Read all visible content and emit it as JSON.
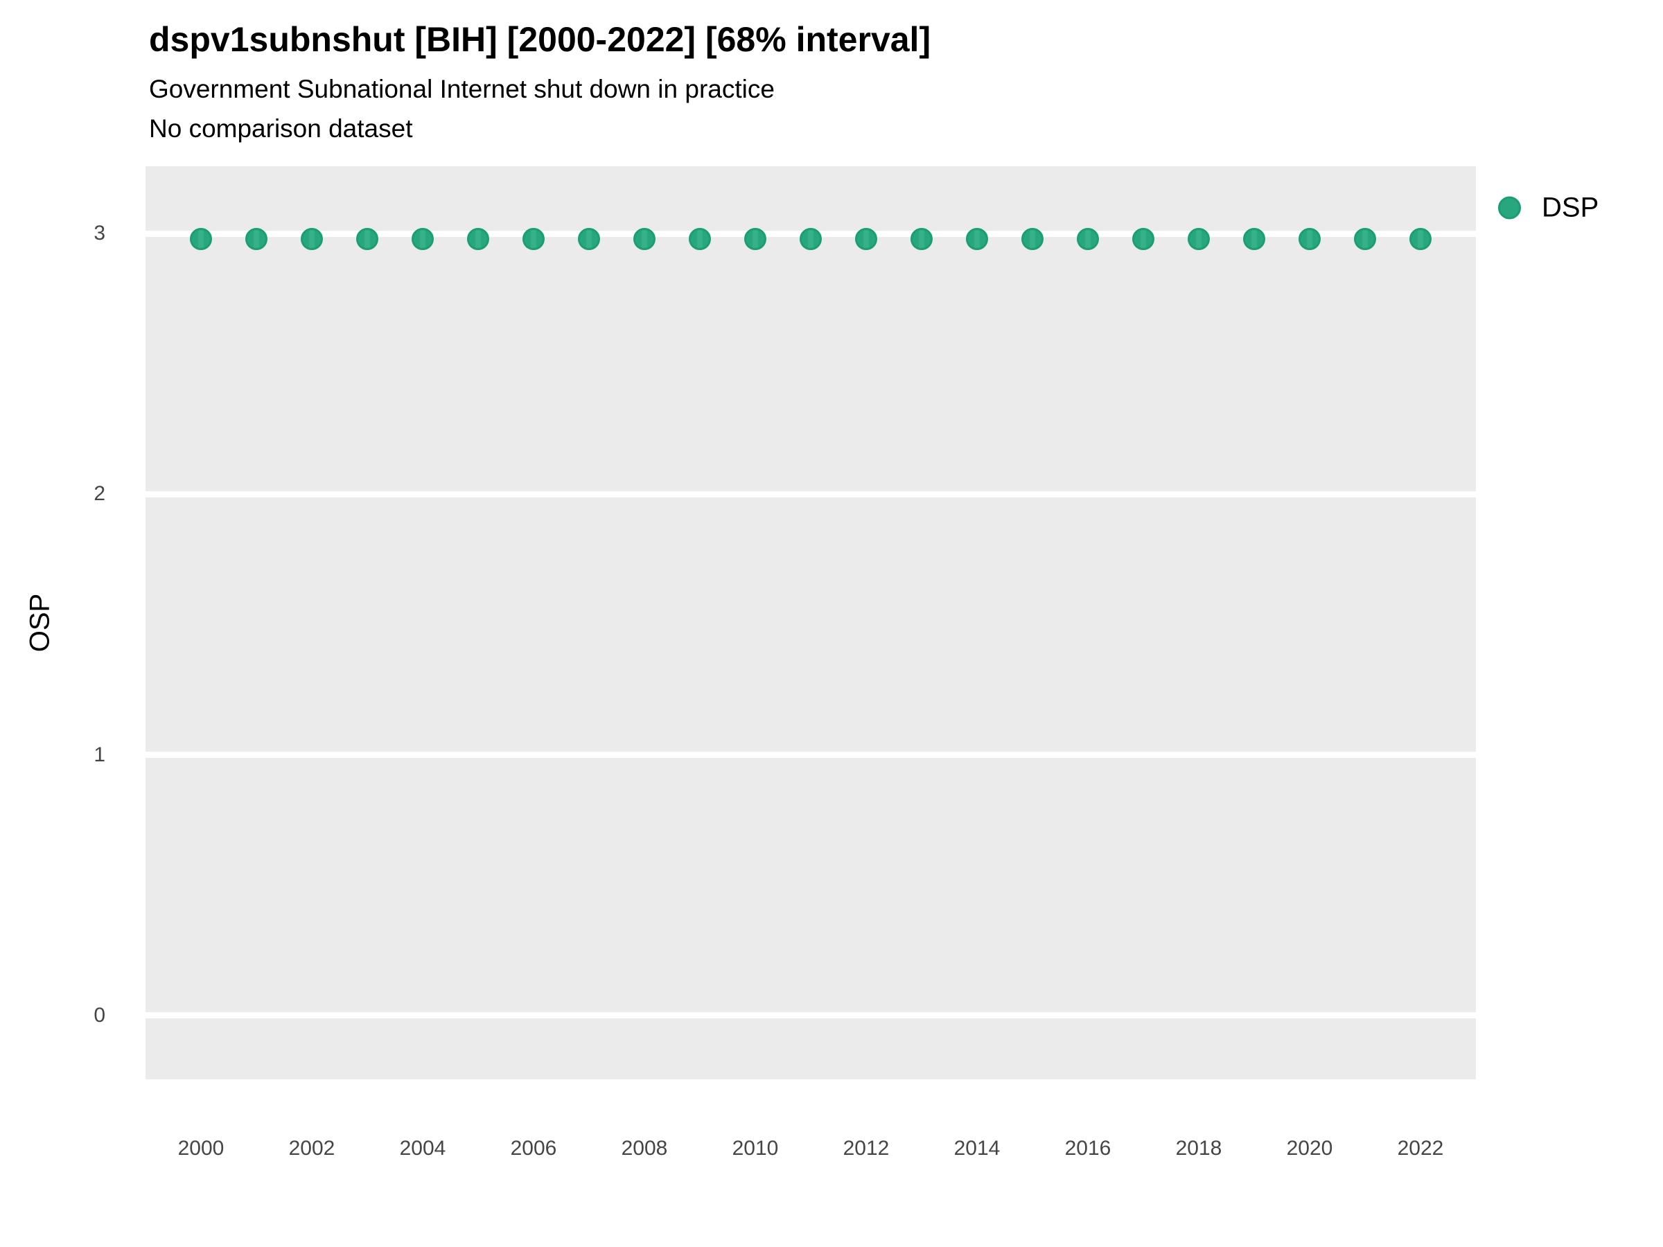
{
  "header": {
    "title": "dspv1subnshut [BIH] [2000-2022] [68% interval]",
    "subtitle": "Government Subnational Internet shut down in practice",
    "note": "No comparison dataset"
  },
  "legend": {
    "items": [
      {
        "label": "DSP",
        "color": "#28a67d",
        "border_color": "#1a9e72"
      }
    ]
  },
  "chart_data": {
    "type": "scatter",
    "title": "dspv1subnshut [BIH] [2000-2022] [68% interval]",
    "subtitle": "Government Subnational Internet shut down in practice",
    "note": "No comparison dataset",
    "x": [
      2000,
      2001,
      2002,
      2003,
      2004,
      2005,
      2006,
      2007,
      2008,
      2009,
      2010,
      2011,
      2012,
      2013,
      2014,
      2015,
      2016,
      2017,
      2018,
      2019,
      2020,
      2021,
      2022
    ],
    "series": [
      {
        "name": "DSP",
        "values": [
          2.98,
          2.98,
          2.98,
          2.98,
          2.98,
          2.98,
          2.98,
          2.98,
          2.98,
          2.98,
          2.98,
          2.98,
          2.98,
          2.98,
          2.98,
          2.98,
          2.98,
          2.98,
          2.98,
          2.98,
          2.98,
          2.98,
          2.98
        ]
      }
    ],
    "xlabel": "",
    "ylabel": "OSP",
    "xlim": [
      1999,
      2023
    ],
    "ylim": [
      -0.245,
      3.258
    ],
    "xticks": [
      2000,
      2002,
      2004,
      2006,
      2008,
      2010,
      2012,
      2014,
      2016,
      2018,
      2020,
      2022
    ],
    "yticks": [
      0,
      1,
      2,
      3
    ],
    "grid": "major-horizontal-only",
    "legend_position": "right",
    "panel_bg": "#EBEBEB",
    "gridline_color": "#FFFFFF",
    "point_color": "#28a67d",
    "point_stripe_color": "#35b088",
    "point_border_color": "#1a9e72",
    "tick_label_color": "#454545"
  }
}
